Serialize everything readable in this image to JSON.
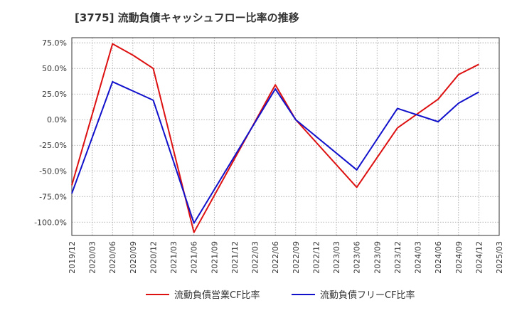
{
  "chart_data": {
    "type": "line",
    "title": "[3775]  流動負債キャッシュフロー比率の推移",
    "x": [
      "2019/12",
      "2020/03",
      "2020/06",
      "2020/09",
      "2020/12",
      "2021/03",
      "2021/06",
      "2021/09",
      "2021/12",
      "2022/03",
      "2022/06",
      "2022/09",
      "2022/12",
      "2023/03",
      "2023/06",
      "2023/09",
      "2023/12",
      "2024/03",
      "2024/06",
      "2024/09",
      "2024/12",
      "2025/03"
    ],
    "yticks": [
      "75.0%",
      "50.0%",
      "25.0%",
      "0.0%",
      "-25.0%",
      "-50.0%",
      "-75.0%",
      "-100.0%"
    ],
    "ytick_values": [
      75,
      50,
      25,
      0,
      -25,
      -50,
      -75,
      -100
    ],
    "ylim": [
      -113,
      80
    ],
    "grid": true,
    "legend_position": "bottom",
    "series": [
      {
        "name": "流動負債営業CF比率",
        "color": "#dd1111",
        "points": [
          {
            "x": "2019/12",
            "y": -64
          },
          {
            "x": "2020/06",
            "y": 74
          },
          {
            "x": "2020/09",
            "y": 63
          },
          {
            "x": "2020/12",
            "y": 50
          },
          {
            "x": "2021/06",
            "y": -110
          },
          {
            "x": "2022/06",
            "y": 34
          },
          {
            "x": "2022/09",
            "y": 0
          },
          {
            "x": "2023/06",
            "y": -66
          },
          {
            "x": "2023/12",
            "y": -8
          },
          {
            "x": "2024/06",
            "y": 20
          },
          {
            "x": "2024/09",
            "y": 44
          },
          {
            "x": "2024/12",
            "y": 54
          }
        ]
      },
      {
        "name": "流動負債フリーCF比率",
        "color": "#1111cc",
        "points": [
          {
            "x": "2019/12",
            "y": -72
          },
          {
            "x": "2020/06",
            "y": 37
          },
          {
            "x": "2020/09",
            "y": 28
          },
          {
            "x": "2020/12",
            "y": 19
          },
          {
            "x": "2021/06",
            "y": -101
          },
          {
            "x": "2022/06",
            "y": 30
          },
          {
            "x": "2022/09",
            "y": 0
          },
          {
            "x": "2023/06",
            "y": -49
          },
          {
            "x": "2023/12",
            "y": 11
          },
          {
            "x": "2024/06",
            "y": -2
          },
          {
            "x": "2024/09",
            "y": 16
          },
          {
            "x": "2024/12",
            "y": 27
          }
        ]
      }
    ]
  }
}
